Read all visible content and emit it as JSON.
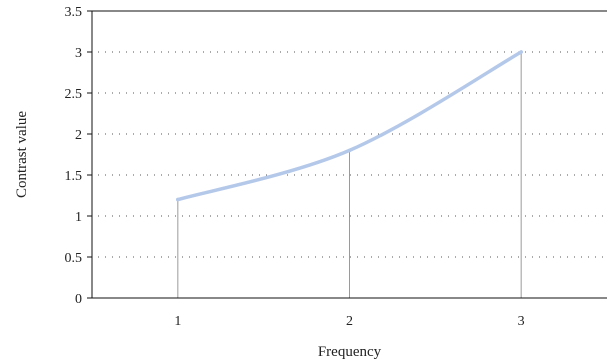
{
  "chart_data": {
    "type": "line",
    "xlabel": "Frequency",
    "ylabel": "Contrast value",
    "x": [
      1,
      2,
      3
    ],
    "series": [
      {
        "values": [
          1.2,
          1.8,
          3.0
        ]
      }
    ],
    "xticks": [
      1,
      2,
      3
    ],
    "xlim": [
      0.5,
      3.5
    ],
    "yticks": [
      "0",
      "0.5",
      "1",
      "1.5",
      "2",
      "2.5",
      "3",
      "3.5"
    ],
    "ylim": [
      0,
      3.5
    ],
    "grid": "horizontal dotted",
    "smooth": true,
    "drop_lines": true,
    "colors": {
      "series": "#b4c8ea",
      "grid": "#555555",
      "axis": "#111111",
      "drop": "#9a9a9a"
    }
  }
}
